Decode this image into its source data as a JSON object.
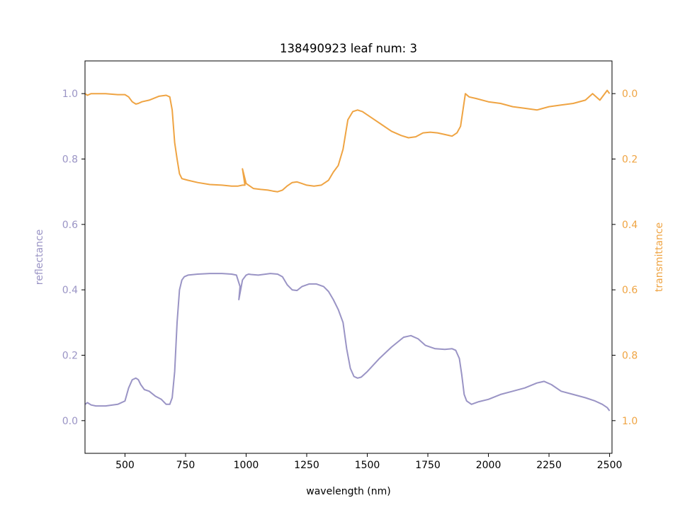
{
  "chart_data": {
    "type": "line",
    "title": "138490923 leaf num: 3",
    "xlabel": "wavelength (nm)",
    "xlim": [
      335,
      2510
    ],
    "x_ticks": [
      500,
      750,
      1000,
      1250,
      1500,
      1750,
      2000,
      2250,
      2500
    ],
    "grid": false,
    "left_axis": {
      "label": "reflectance",
      "color": "#9a94c5",
      "ylim": [
        -0.1,
        1.1
      ],
      "ticks": [
        0.0,
        0.2,
        0.4,
        0.6,
        0.8,
        1.0
      ]
    },
    "right_axis": {
      "label": "transmittance",
      "color": "#efa443",
      "ylim": [
        1.1,
        -0.1
      ],
      "inverted": true,
      "ticks": [
        0.0,
        0.2,
        0.4,
        0.6,
        0.8,
        1.0
      ]
    },
    "series": [
      {
        "axis": "left",
        "color": "#9a94c5",
        "x": [
          335,
          345,
          360,
          380,
          420,
          470,
          500,
          515,
          530,
          545,
          555,
          565,
          580,
          600,
          625,
          650,
          670,
          685,
          695,
          705,
          715,
          725,
          735,
          745,
          760,
          800,
          850,
          900,
          940,
          960,
          975,
          970,
          985,
          1000,
          1010,
          1020,
          1050,
          1100,
          1130,
          1150,
          1170,
          1190,
          1210,
          1230,
          1260,
          1290,
          1320,
          1340,
          1360,
          1380,
          1400,
          1415,
          1430,
          1445,
          1460,
          1475,
          1500,
          1550,
          1600,
          1650,
          1680,
          1710,
          1740,
          1780,
          1820,
          1850,
          1865,
          1880,
          1890,
          1900,
          1910,
          1930,
          1960,
          2000,
          2050,
          2100,
          2150,
          2200,
          2230,
          2260,
          2300,
          2350,
          2400,
          2440,
          2470,
          2490,
          2500
        ],
        "y": [
          0.05,
          0.055,
          0.048,
          0.045,
          0.045,
          0.05,
          0.06,
          0.1,
          0.125,
          0.13,
          0.125,
          0.11,
          0.095,
          0.09,
          0.075,
          0.065,
          0.05,
          0.05,
          0.07,
          0.15,
          0.3,
          0.4,
          0.43,
          0.44,
          0.445,
          0.448,
          0.45,
          0.45,
          0.448,
          0.445,
          0.41,
          0.37,
          0.43,
          0.445,
          0.448,
          0.447,
          0.445,
          0.45,
          0.448,
          0.44,
          0.415,
          0.4,
          0.398,
          0.41,
          0.418,
          0.418,
          0.41,
          0.395,
          0.37,
          0.34,
          0.3,
          0.22,
          0.16,
          0.135,
          0.13,
          0.133,
          0.15,
          0.19,
          0.225,
          0.255,
          0.26,
          0.25,
          0.23,
          0.22,
          0.218,
          0.22,
          0.215,
          0.19,
          0.14,
          0.08,
          0.06,
          0.05,
          0.058,
          0.065,
          0.08,
          0.09,
          0.1,
          0.115,
          0.12,
          0.11,
          0.09,
          0.08,
          0.07,
          0.06,
          0.05,
          0.04,
          0.03
        ]
      },
      {
        "axis": "right",
        "color": "#efa443",
        "x": [
          335,
          345,
          360,
          380,
          420,
          470,
          500,
          515,
          530,
          545,
          555,
          570,
          600,
          640,
          670,
          685,
          695,
          705,
          715,
          725,
          735,
          745,
          760,
          800,
          850,
          900,
          940,
          965,
          985,
          995,
          985,
          1000,
          1030,
          1060,
          1090,
          1110,
          1130,
          1150,
          1170,
          1190,
          1210,
          1230,
          1250,
          1280,
          1310,
          1340,
          1360,
          1380,
          1400,
          1420,
          1440,
          1460,
          1480,
          1520,
          1560,
          1600,
          1640,
          1670,
          1700,
          1730,
          1760,
          1790,
          1820,
          1850,
          1870,
          1885,
          1895,
          1905,
          1920,
          1950,
          2000,
          2050,
          2100,
          2150,
          2200,
          2250,
          2300,
          2350,
          2400,
          2430,
          2460,
          2490,
          2500
        ],
        "y": [
          0.0,
          0.005,
          0.0,
          0.0,
          0.0,
          0.003,
          0.003,
          0.01,
          0.025,
          0.032,
          0.03,
          0.025,
          0.02,
          0.008,
          0.005,
          0.01,
          0.05,
          0.15,
          0.2,
          0.245,
          0.26,
          0.262,
          0.265,
          0.272,
          0.278,
          0.28,
          0.283,
          0.283,
          0.28,
          0.28,
          0.23,
          0.275,
          0.29,
          0.293,
          0.295,
          0.298,
          0.3,
          0.295,
          0.282,
          0.272,
          0.27,
          0.275,
          0.28,
          0.283,
          0.28,
          0.265,
          0.24,
          0.22,
          0.17,
          0.08,
          0.055,
          0.05,
          0.055,
          0.075,
          0.095,
          0.115,
          0.128,
          0.135,
          0.132,
          0.12,
          0.118,
          0.12,
          0.125,
          0.13,
          0.12,
          0.1,
          0.05,
          0.0,
          0.01,
          0.015,
          0.025,
          0.03,
          0.04,
          0.045,
          0.05,
          0.04,
          0.035,
          0.03,
          0.02,
          0.0,
          0.02,
          -0.01,
          0.0
        ]
      }
    ]
  }
}
